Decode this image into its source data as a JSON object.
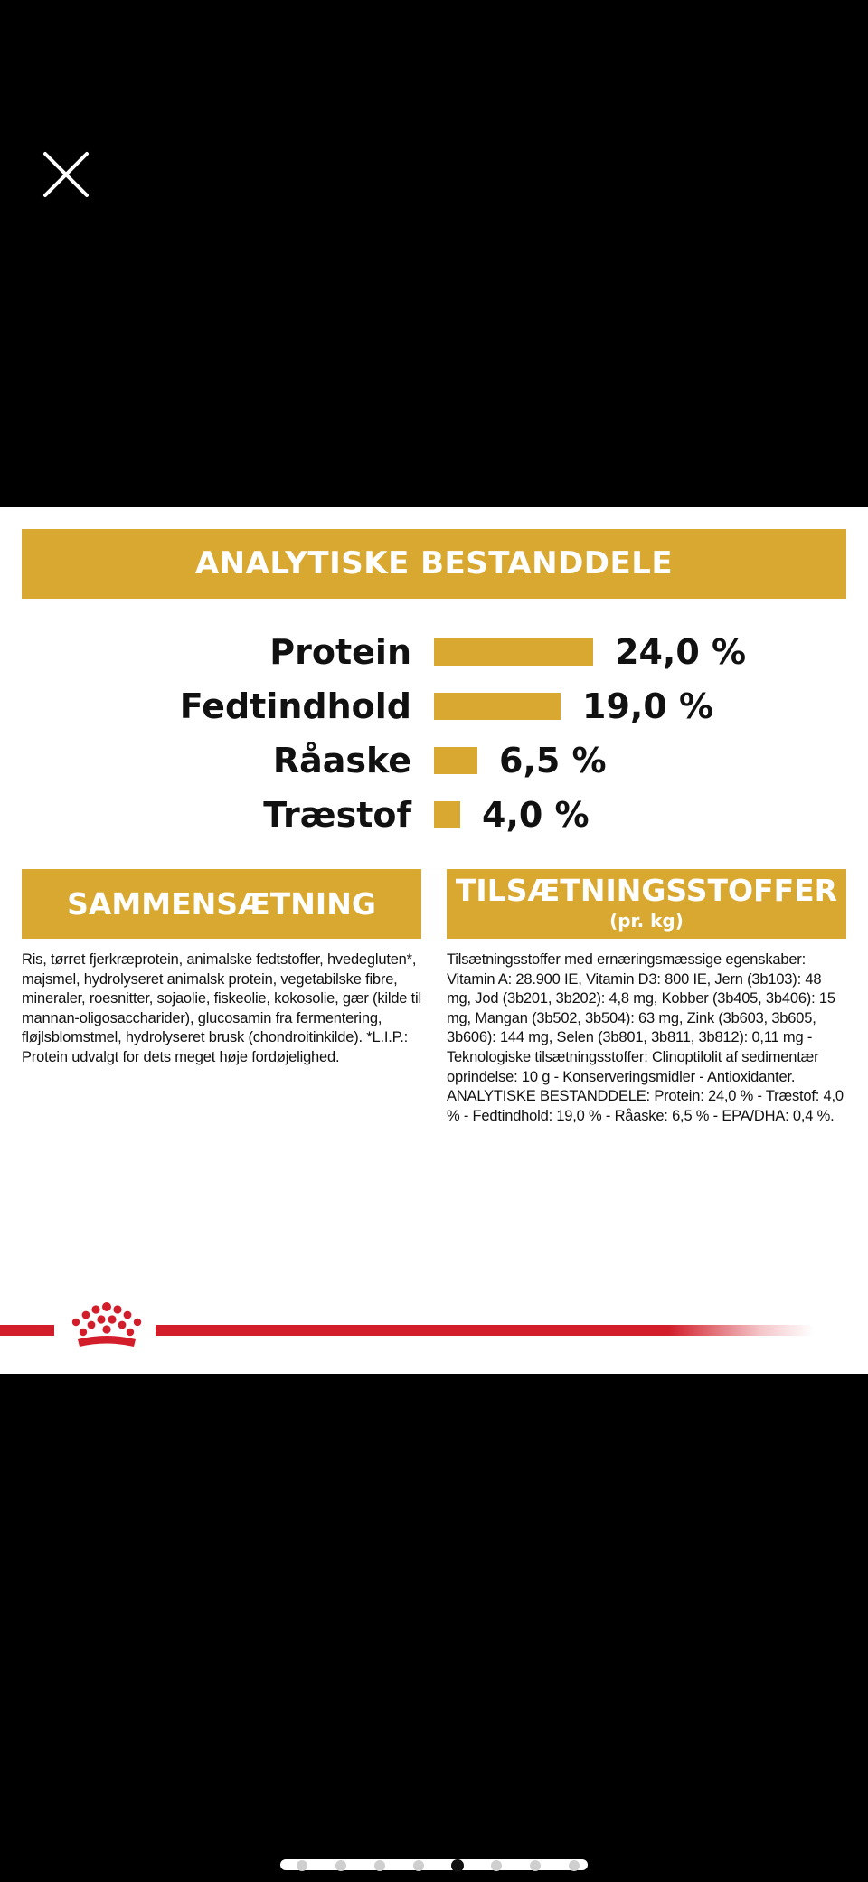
{
  "viewer": {
    "close_icon": "close-icon",
    "colors": {
      "background": "#000000",
      "accent": "#d9a830",
      "brand_red": "#d21e2b"
    }
  },
  "analytic": {
    "title": "ANALYTISKE BESTANDDELE",
    "rows": [
      {
        "label": "Protein",
        "value": "24,0 %",
        "percent": 24.0
      },
      {
        "label": "Fedtindhold",
        "value": "19,0 %",
        "percent": 19.0
      },
      {
        "label": "Råaske",
        "value": "6,5 %",
        "percent": 6.5
      },
      {
        "label": "Træstof",
        "value": "4,0 %",
        "percent": 4.0
      }
    ]
  },
  "composition": {
    "title": "SAMMENSÆTNING",
    "text": "Ris, tørret fjerkræprotein, animalske fedtstoffer, hvedegluten*, majsmel, hydrolyseret animalsk protein, vegetabilske fibre, mineraler, roesnitter, sojaolie, fiskeolie, kokosolie, gær (kilde til mannan-oligosaccharider), glucosamin fra fermentering, fløjlsblomstmel, hydrolyseret brusk (chondroitinkilde). *L.I.P.: Protein udvalgt for dets meget høje fordøjelighed."
  },
  "additives": {
    "title": "TILSÆTNINGSSTOFFER",
    "subtitle": "(pr. kg)",
    "text": "Tilsætningsstoffer med ernæringsmæssige egenskaber: Vitamin A: 28.900 IE, Vitamin D3: 800 IE, Jern (3b103): 48 mg, Jod (3b201, 3b202): 4,8 mg, Kobber (3b405, 3b406): 15 mg, Mangan (3b502, 3b504): 63 mg, Zink (3b603, 3b605, 3b606): 144 mg, Selen (3b801, 3b811, 3b812): 0,11 mg - Teknologiske tilsætningsstoffer: Clinoptilolit af sedimentær oprindelse: 10 g - Konserveringsmidler - Antioxidanter. ANALYTISKE BESTANDDELE: Protein: 24,0 % - Træstof: 4,0 % - Fedtindhold: 19,0 % - Råaske: 6,5 % - EPA/DHA: 0,4 %."
  },
  "brand": {
    "logo_icon": "crown-icon"
  },
  "pager": {
    "count": 8,
    "active": 4
  }
}
